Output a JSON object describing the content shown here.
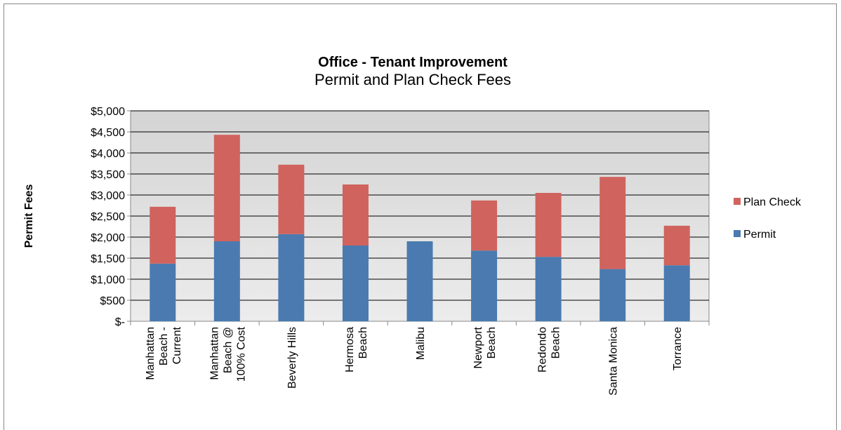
{
  "chart_data": {
    "type": "stacked_bar",
    "title": "Office - Tenant Improvement",
    "subtitle": "Permit and Plan Check Fees",
    "y_label": "Permit Fees",
    "categories": [
      [
        "Manhattan",
        "Beach -",
        "Current"
      ],
      [
        "Manhattan",
        "Beach @",
        "100% Cost"
      ],
      [
        "Beverly Hills"
      ],
      [
        "Hermosa",
        "Beach"
      ],
      [
        "Malibu"
      ],
      [
        "Newport",
        "Beach"
      ],
      [
        "Redondo",
        "Beach"
      ],
      [
        "Santa Monica"
      ],
      [
        "Torrance"
      ]
    ],
    "series": [
      {
        "name": "Permit",
        "color": "#4a7ab0",
        "values": [
          1370,
          1900,
          2070,
          1800,
          1900,
          1680,
          1530,
          1240,
          1330
        ]
      },
      {
        "name": "Plan Check",
        "color": "#d0635d",
        "values": [
          1350,
          2530,
          1650,
          1450,
          0,
          1190,
          1520,
          2190,
          940
        ]
      }
    ],
    "ylim": [
      0,
      5000
    ],
    "yticks": [
      {
        "value": 0,
        "label": "$-"
      },
      {
        "value": 500,
        "label": "$500"
      },
      {
        "value": 1000,
        "label": "$1,000"
      },
      {
        "value": 1500,
        "label": "$1,500"
      },
      {
        "value": 2000,
        "label": "$2,000"
      },
      {
        "value": 2500,
        "label": "$2,500"
      },
      {
        "value": 3000,
        "label": "$3,000"
      },
      {
        "value": 3500,
        "label": "$3,500"
      },
      {
        "value": 4000,
        "label": "$4,000"
      },
      {
        "value": 4500,
        "label": "$4,500"
      },
      {
        "value": 5000,
        "label": "$5,000"
      }
    ],
    "grid": true,
    "legend": "right"
  }
}
